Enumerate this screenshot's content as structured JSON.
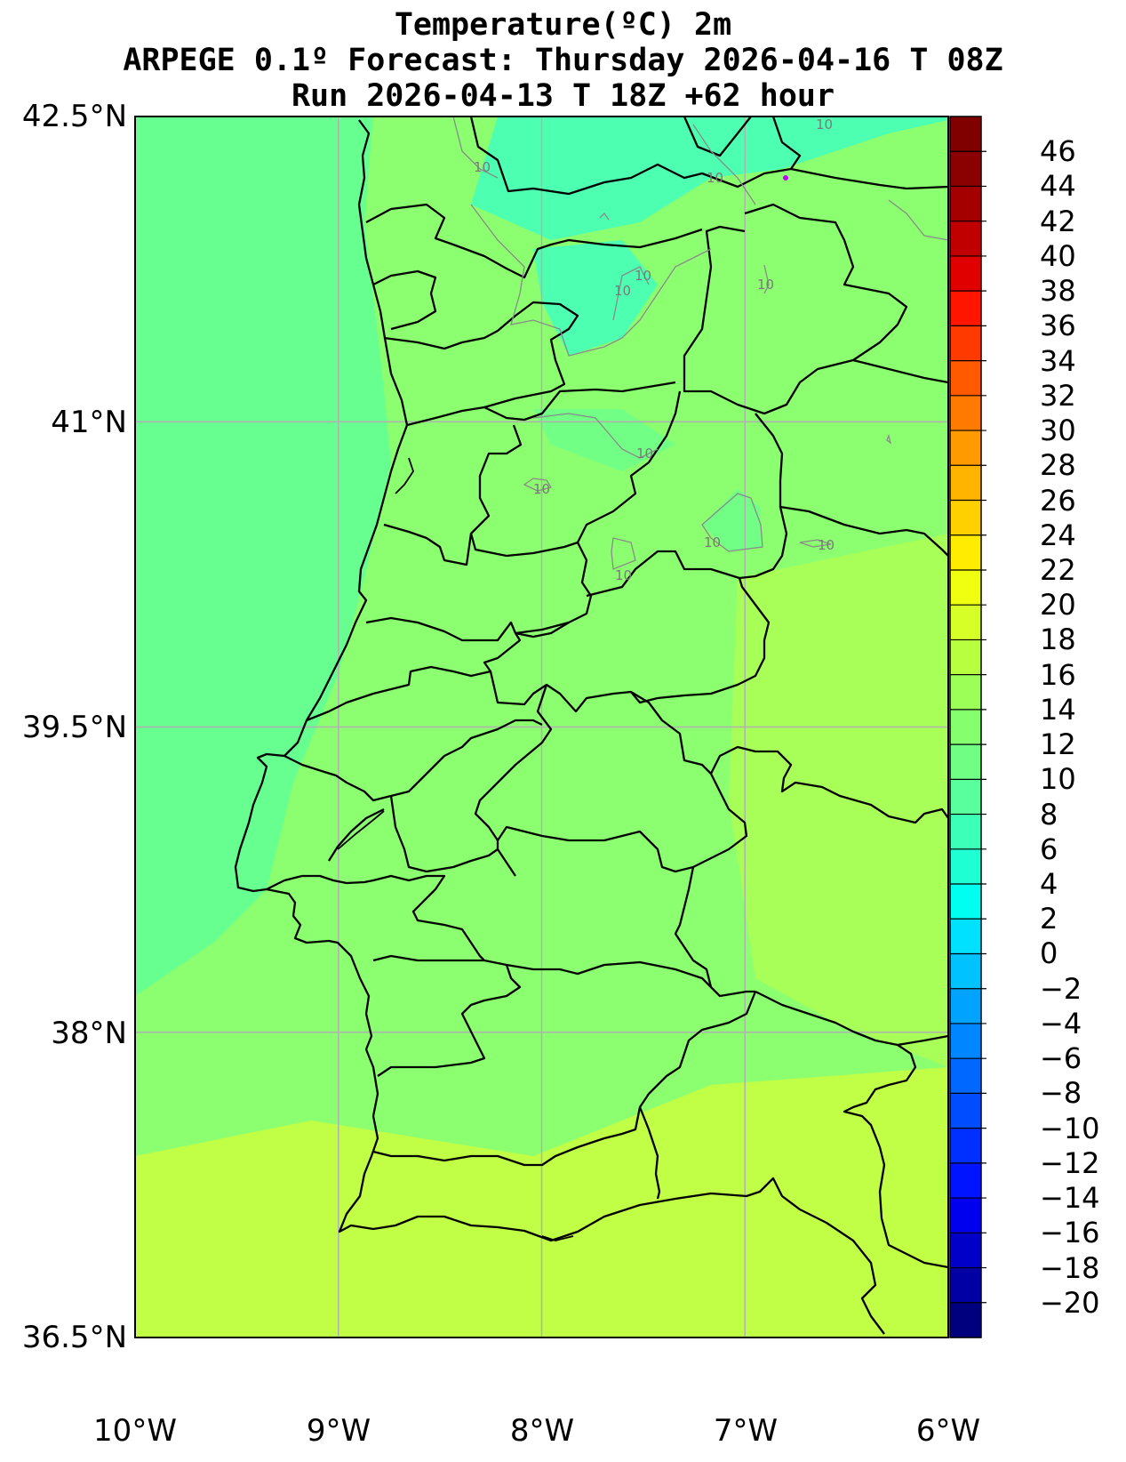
{
  "title": {
    "line1": "Temperature(ºC) 2m",
    "line2": "ARPEGE 0.1º Forecast: Thursday 2026-04-16 T 08Z",
    "line3": "Run 2026-04-13 T 18Z +62 hour"
  },
  "map": {
    "lat_labels": [
      "42.5°N",
      "41°N",
      "39.5°N",
      "38°N",
      "36.5°N"
    ],
    "lon_labels": [
      "10°W",
      "9°W",
      "8°W",
      "7°W",
      "6°W"
    ],
    "lat_range": [
      36.5,
      42.5
    ],
    "lon_range": [
      -10,
      -6
    ],
    "gridlines": true,
    "contour_label": "10",
    "colors": {
      "sea_north": "#66ff90",
      "land_dominant": "#8cff70",
      "south_coast": "#c0ff46",
      "cold_spot": "#3dffc0",
      "border_lines": "#000000",
      "grid_lines": "#b0b0b0"
    }
  },
  "colorbar": {
    "ticks": [
      "46",
      "44",
      "42",
      "40",
      "38",
      "36",
      "34",
      "32",
      "30",
      "28",
      "26",
      "24",
      "22",
      "20",
      "18",
      "16",
      "14",
      "12",
      "10",
      "8",
      "6",
      "4",
      "2",
      "0",
      "−2",
      "−4",
      "−6",
      "−8",
      "−10",
      "−12",
      "−14",
      "−16",
      "−18",
      "−20"
    ],
    "colors_top_to_bottom": [
      "#800000",
      "#8b0000",
      "#a40000",
      "#c00000",
      "#e00000",
      "#ff1500",
      "#ff3a00",
      "#ff5a00",
      "#ff7a00",
      "#ff9a00",
      "#ffb400",
      "#ffd000",
      "#ffec00",
      "#f0ff10",
      "#d6ff28",
      "#b8ff40",
      "#9cff58",
      "#86ff6e",
      "#70ff84",
      "#58ff9c",
      "#3cffb8",
      "#1effd4",
      "#00fff0",
      "#00e0ff",
      "#00c2ff",
      "#00a4ff",
      "#0086ff",
      "#0068ff",
      "#004cff",
      "#0030ff",
      "#0014ff",
      "#0000ee",
      "#0000c8",
      "#0000a4",
      "#00007f"
    ]
  }
}
